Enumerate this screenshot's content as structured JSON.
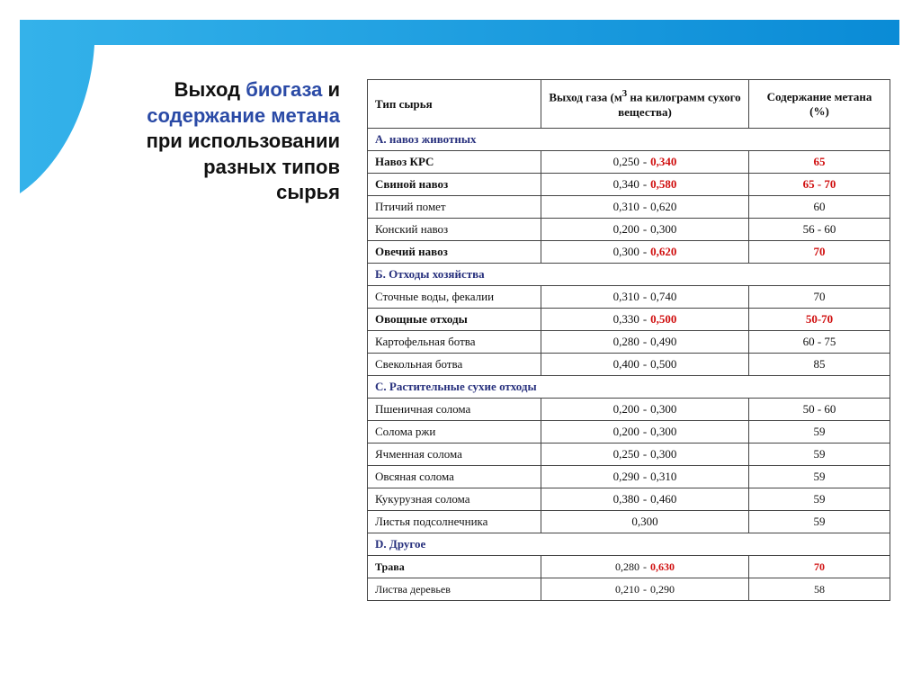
{
  "slide": {
    "title": [
      "Выход",
      "биогаза",
      "и",
      "содержание метана",
      "при использовании",
      "разных типов",
      "сырья"
    ],
    "range_separator": "-",
    "table": {
      "header": [
        "Тип сырья",
        {
          "before": "Выход газа (м",
          "sup": "3",
          "after": "на килограмм сухого вещества)"
        },
        "Содержание метана (%)"
      ],
      "sections": [
        {
          "name": "А. навоз животных",
          "rows": [
            {
              "name": "Навоз КРС",
              "emphasis": true,
              "gas": [
                "0,250",
                "0,340"
              ],
              "methane": "65"
            },
            {
              "name": "Свиной навоз",
              "emphasis": true,
              "gas": [
                "0,340",
                "0,580"
              ],
              "methane": "65 - 70"
            },
            {
              "name": "Птичий помет",
              "emphasis": false,
              "gas": [
                "0,310",
                "0,620"
              ],
              "methane": "60"
            },
            {
              "name": "Конский навоз",
              "emphasis": false,
              "gas": [
                "0,200",
                "0,300"
              ],
              "methane": "56 - 60"
            },
            {
              "name": "Овечий навоз",
              "emphasis": true,
              "gas": [
                "0,300",
                "0,620"
              ],
              "methane": "70"
            }
          ]
        },
        {
          "name": "Б. Отходы хозяйства",
          "rows": [
            {
              "name": "Сточные воды, фекалии",
              "emphasis": false,
              "gas": [
                "0,310",
                "0,740"
              ],
              "methane": "70"
            },
            {
              "name": "Овощные отходы",
              "emphasis": true,
              "gas": [
                "0,330",
                "0,500"
              ],
              "methane": "50-70"
            },
            {
              "name": "Картофельная ботва",
              "emphasis": false,
              "gas": [
                "0,280",
                "0,490"
              ],
              "methane": "60 - 75"
            },
            {
              "name": "Свекольная ботва",
              "emphasis": false,
              "gas": [
                "0,400",
                "0,500"
              ],
              "methane": "85"
            }
          ]
        },
        {
          "name": "С. Растительные сухие отходы",
          "rows": [
            {
              "name": "Пшеничная солома",
              "emphasis": false,
              "gas": [
                "0,200",
                "0,300"
              ],
              "methane": "50 - 60"
            },
            {
              "name": "Солома ржи",
              "emphasis": false,
              "gas": [
                "0,200",
                "0,300"
              ],
              "methane": "59"
            },
            {
              "name": "Ячменная солома",
              "emphasis": false,
              "gas": [
                "0,250",
                "0,300"
              ],
              "methane": "59"
            },
            {
              "name": "Овсяная солома",
              "emphasis": false,
              "gas": [
                "0,290",
                "0,310"
              ],
              "methane": "59"
            },
            {
              "name": "Кукурузная солома",
              "emphasis": false,
              "gas": [
                "0,380",
                "0,460"
              ],
              "methane": "59"
            },
            {
              "name": "Листья подсолнечника",
              "emphasis": false,
              "gas": [
                "0,300"
              ],
              "methane": "59"
            }
          ]
        },
        {
          "name": "D. Другое",
          "rows": [
            {
              "name": "Трава",
              "emphasis": true,
              "gas": [
                "0,280",
                "0,630"
              ],
              "methane": "70"
            },
            {
              "name": "Листва деревьев",
              "emphasis": false,
              "gas": [
                "0,210",
                "0,290"
              ],
              "methane": "58"
            }
          ]
        }
      ]
    }
  }
}
